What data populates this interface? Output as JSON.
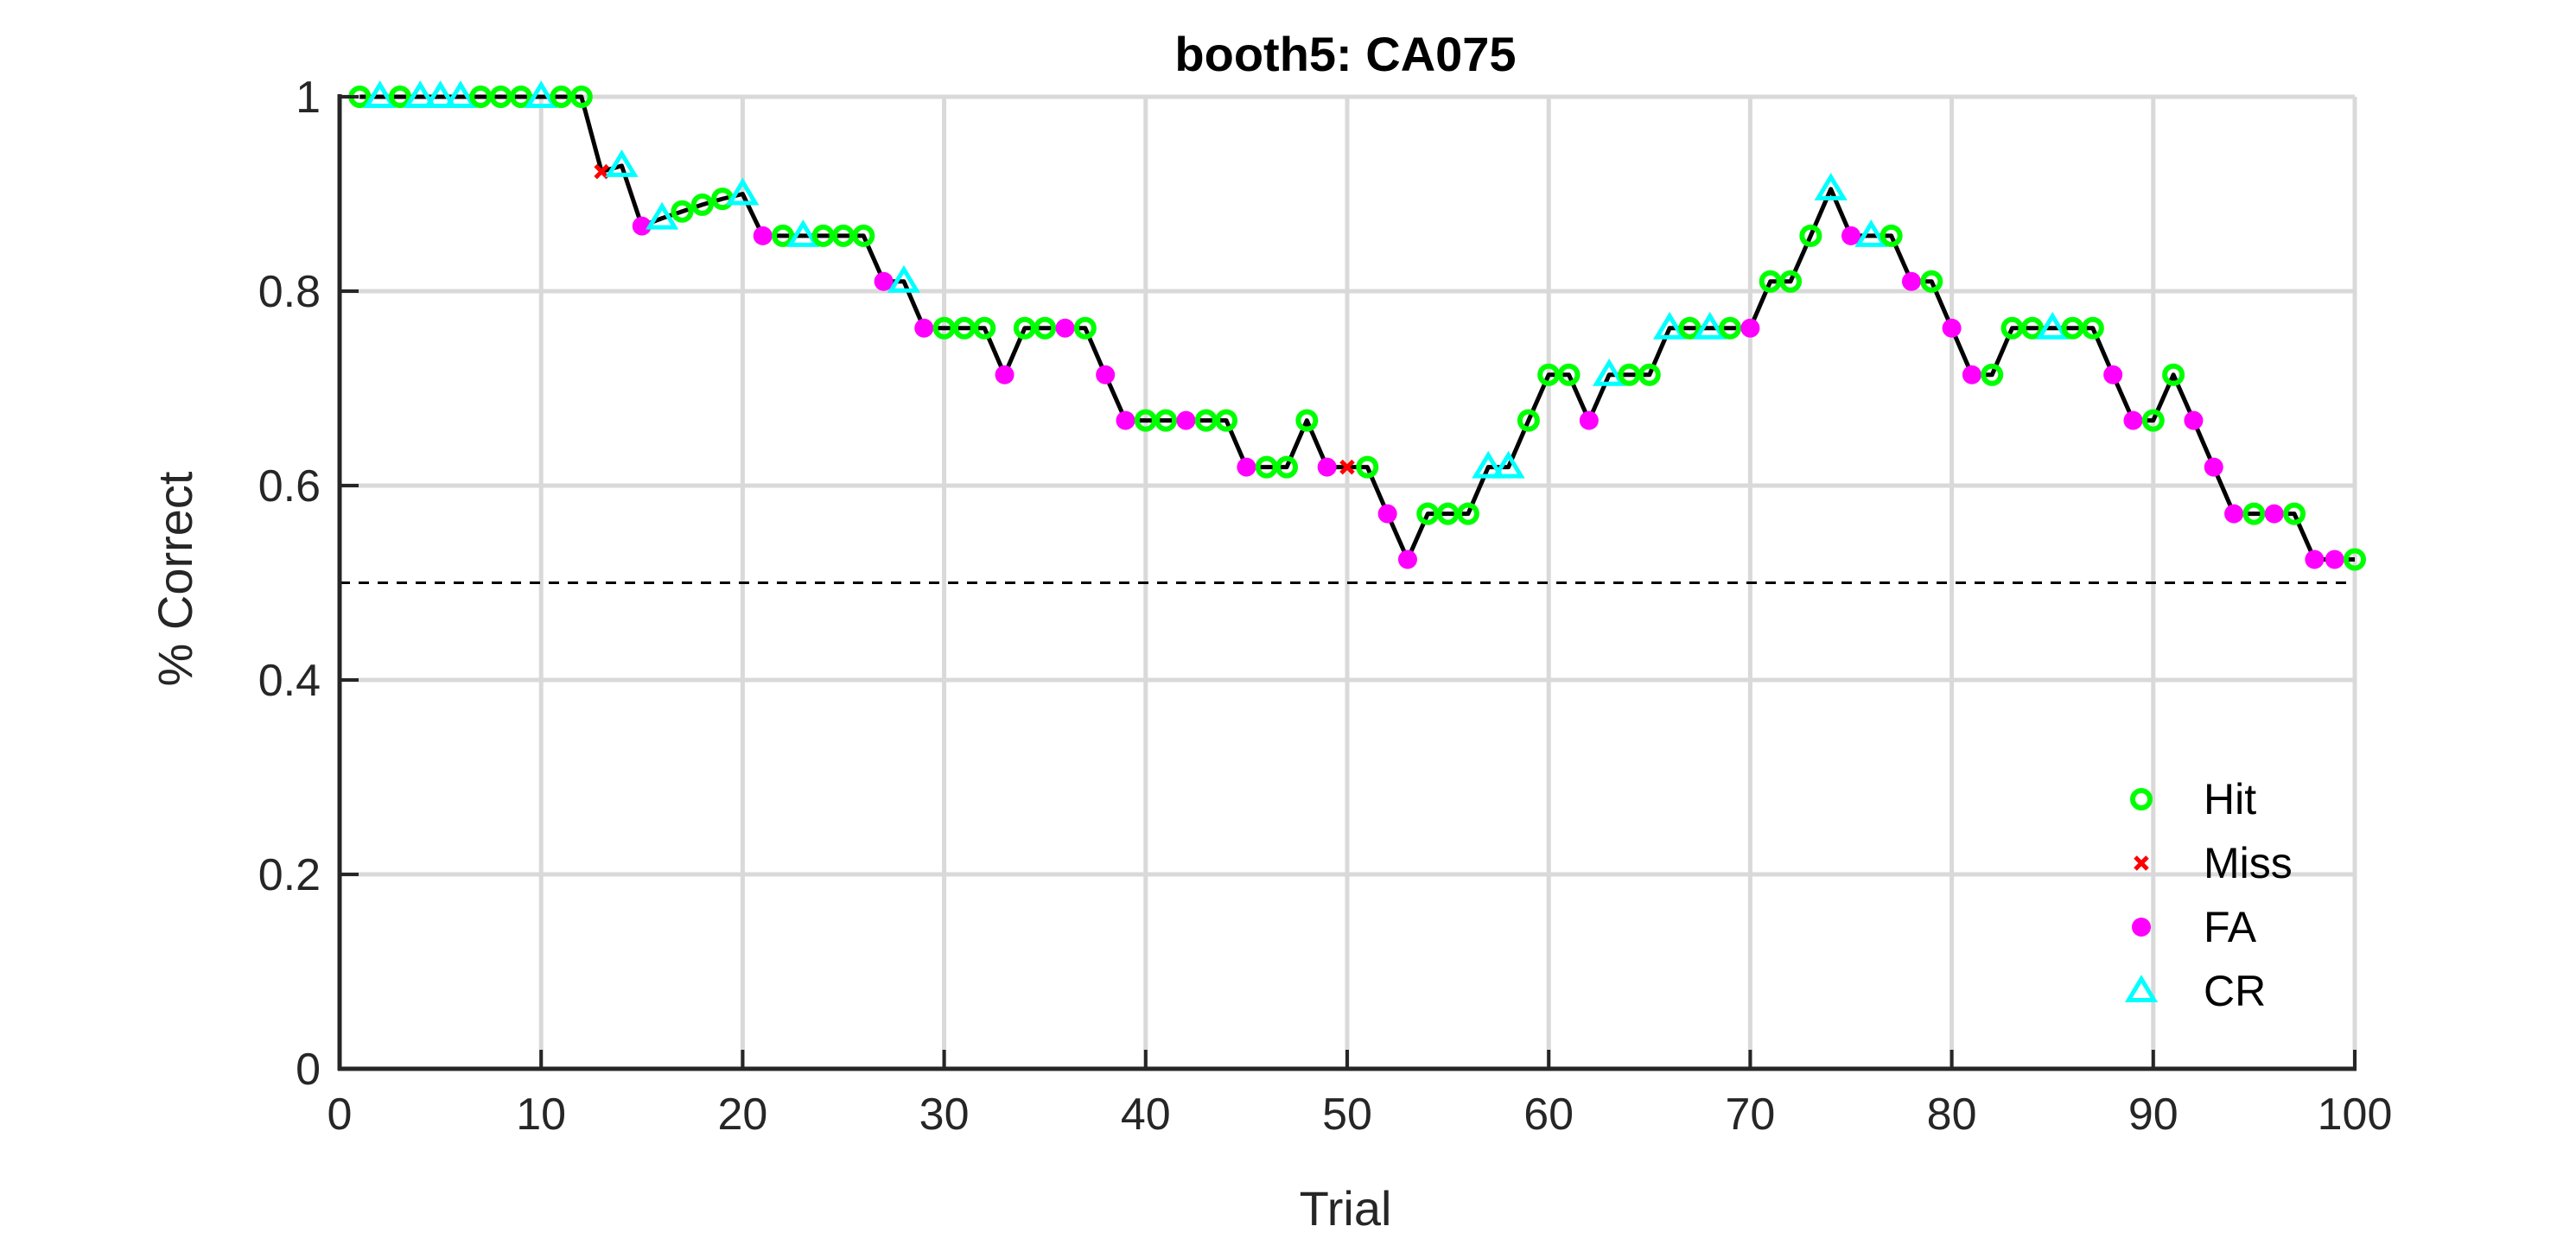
{
  "chart_data": {
    "type": "line",
    "title": "booth5: CA075",
    "xlabel": "Trial",
    "ylabel": "% Correct",
    "xlim": [
      0,
      100
    ],
    "ylim": [
      0,
      1
    ],
    "xticks": [
      0,
      10,
      20,
      30,
      40,
      50,
      60,
      70,
      80,
      90,
      100
    ],
    "yticks": [
      0,
      0.2,
      0.4,
      0.6,
      0.8,
      1
    ],
    "xtick_labels": [
      "0",
      "10",
      "20",
      "30",
      "40",
      "50",
      "60",
      "70",
      "80",
      "90",
      "100"
    ],
    "ytick_labels": [
      "0",
      "0.2",
      "0.4",
      "0.6",
      "0.8",
      "1"
    ],
    "grid": true,
    "reference_line": {
      "y": 0.5,
      "style": "dashed",
      "color": "#000000"
    },
    "line_color": "#000000",
    "x": [
      1,
      2,
      3,
      4,
      5,
      6,
      7,
      8,
      9,
      10,
      11,
      12,
      13,
      14,
      15,
      16,
      17,
      18,
      19,
      20,
      21,
      22,
      23,
      24,
      25,
      26,
      27,
      28,
      29,
      30,
      31,
      32,
      33,
      34,
      35,
      36,
      37,
      38,
      39,
      40,
      41,
      42,
      43,
      44,
      45,
      46,
      47,
      48,
      49,
      50,
      51,
      52,
      53,
      54,
      55,
      56,
      57,
      58,
      59,
      60,
      61,
      62,
      63,
      64,
      65,
      66,
      67,
      68,
      69,
      70,
      71,
      72,
      73,
      74,
      75,
      76,
      77,
      78,
      79,
      80,
      81,
      82,
      83,
      84,
      85,
      86,
      87,
      88,
      89,
      90,
      91,
      92,
      93,
      94,
      95,
      96,
      97,
      98,
      99,
      100
    ],
    "y": [
      1.0,
      1.0,
      1.0,
      1.0,
      1.0,
      1.0,
      1.0,
      1.0,
      1.0,
      1.0,
      1.0,
      1.0,
      0.923,
      0.929,
      0.867,
      0.875,
      0.882,
      0.889,
      0.895,
      0.9,
      0.857,
      0.857,
      0.857,
      0.857,
      0.857,
      0.857,
      0.81,
      0.81,
      0.762,
      0.762,
      0.762,
      0.762,
      0.714,
      0.762,
      0.762,
      0.762,
      0.762,
      0.714,
      0.667,
      0.667,
      0.667,
      0.667,
      0.667,
      0.667,
      0.619,
      0.619,
      0.619,
      0.667,
      0.619,
      0.619,
      0.619,
      0.571,
      0.524,
      0.571,
      0.571,
      0.571,
      0.619,
      0.619,
      0.667,
      0.714,
      0.714,
      0.667,
      0.714,
      0.714,
      0.714,
      0.762,
      0.762,
      0.762,
      0.762,
      0.762,
      0.81,
      0.81,
      0.857,
      0.905,
      0.857,
      0.857,
      0.857,
      0.81,
      0.81,
      0.762,
      0.714,
      0.714,
      0.762,
      0.762,
      0.762,
      0.762,
      0.762,
      0.714,
      0.667,
      0.667,
      0.714,
      0.667,
      0.619,
      0.571,
      0.571,
      0.571,
      0.571,
      0.524,
      0.524,
      0.524
    ],
    "outcomes": [
      "Hit",
      "CR",
      "Hit",
      "CR",
      "CR",
      "CR",
      "Hit",
      "Hit",
      "Hit",
      "CR",
      "Hit",
      "Hit",
      "Miss",
      "CR",
      "FA",
      "CR",
      "Hit",
      "Hit",
      "Hit",
      "CR",
      "FA",
      "Hit",
      "CR",
      "Hit",
      "Hit",
      "Hit",
      "FA",
      "CR",
      "FA",
      "Hit",
      "Hit",
      "Hit",
      "FA",
      "Hit",
      "Hit",
      "FA",
      "Hit",
      "FA",
      "FA",
      "Hit",
      "Hit",
      "FA",
      "Hit",
      "Hit",
      "FA",
      "Hit",
      "Hit",
      "Hit",
      "FA",
      "Miss",
      "Hit",
      "FA",
      "FA",
      "Hit",
      "Hit",
      "Hit",
      "CR",
      "CR",
      "Hit",
      "Hit",
      "Hit",
      "FA",
      "CR",
      "Hit",
      "Hit",
      "CR",
      "Hit",
      "CR",
      "Hit",
      "FA",
      "Hit",
      "Hit",
      "Hit",
      "CR",
      "FA",
      "CR",
      "Hit",
      "FA",
      "Hit",
      "FA",
      "FA",
      "Hit",
      "Hit",
      "Hit",
      "CR",
      "Hit",
      "Hit",
      "FA",
      "FA",
      "Hit",
      "Hit",
      "FA",
      "FA",
      "FA",
      "Hit",
      "FA",
      "Hit",
      "FA",
      "FA",
      "Hit"
    ],
    "legend": {
      "placement": "bottom-right",
      "entries": [
        {
          "name": "Hit",
          "marker": "circle-open",
          "color": "#00ff00"
        },
        {
          "name": "Miss",
          "marker": "x",
          "color": "#ff0000"
        },
        {
          "name": "FA",
          "marker": "circle-filled",
          "color": "#ff00ff"
        },
        {
          "name": "CR",
          "marker": "triangle-open",
          "color": "#00ffff"
        }
      ]
    }
  }
}
